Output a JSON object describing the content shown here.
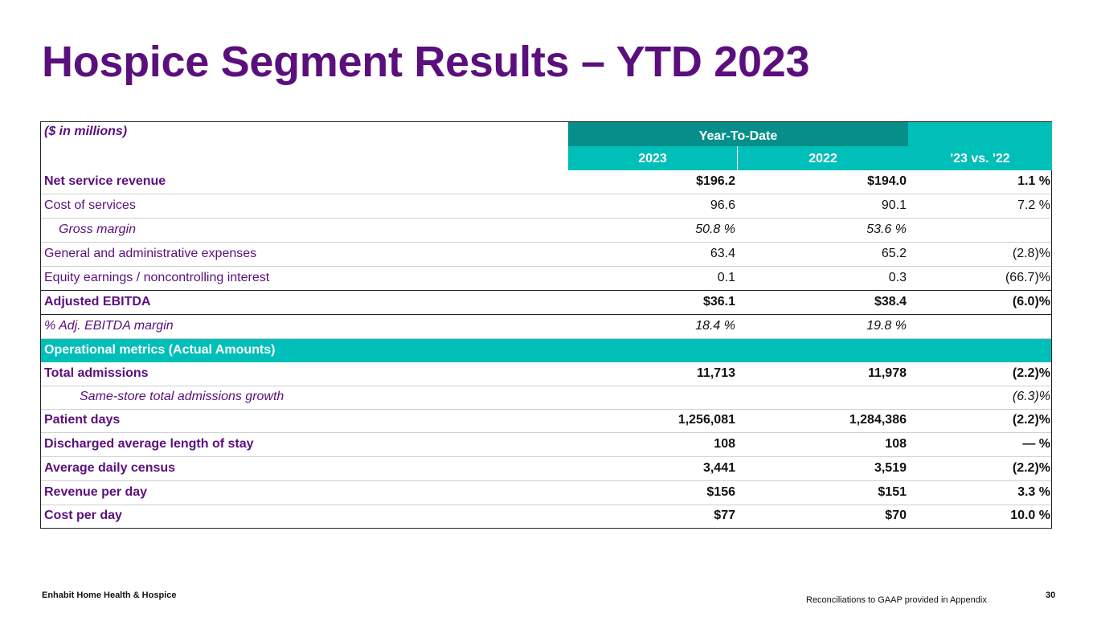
{
  "slide": {
    "title": "Hospice Segment Results – YTD 2023",
    "footer_company": "Enhabit Home Health & Hospice",
    "footer_note": "Reconciliations to GAAP provided in Appendix",
    "page_number": "30"
  },
  "colors": {
    "title": "#5b0f7d",
    "header_dark_teal": "#068f8a",
    "header_teal": "#00bfb8"
  },
  "table": {
    "units_label": "($ in millions)",
    "group_header": "Year-To-Date",
    "col_2023": "2023",
    "col_2022": "2022",
    "col_change": "'23 vs. '22",
    "rows": [
      {
        "label": "Net service revenue",
        "v2023": "$196.2",
        "v2022": "$194.0",
        "change": "1.1 %"
      },
      {
        "label": "Cost of services",
        "v2023": "96.6",
        "v2022": "90.1",
        "change": "7.2 %"
      },
      {
        "label": "Gross margin",
        "v2023": "50.8 %",
        "v2022": "53.6 %",
        "change": ""
      },
      {
        "label": "General and administrative expenses",
        "v2023": "63.4",
        "v2022": "65.2",
        "change": "(2.8)%"
      },
      {
        "label": "Equity earnings / noncontrolling interest",
        "v2023": "0.1",
        "v2022": "0.3",
        "change": "(66.7)%"
      },
      {
        "label": "Adjusted EBITDA",
        "v2023": "$36.1",
        "v2022": "$38.4",
        "change": "(6.0)%"
      },
      {
        "label": "%  Adj. EBITDA margin",
        "v2023": "18.4 %",
        "v2022": "19.8 %",
        "change": ""
      }
    ],
    "section_label": "Operational metrics (Actual Amounts)",
    "metrics": [
      {
        "label": "Total admissions",
        "v2023": "11,713",
        "v2022": "11,978",
        "change": "(2.2)%"
      },
      {
        "label": "Same-store total admissions growth",
        "v2023": "",
        "v2022": "",
        "change": "(6.3)%"
      },
      {
        "label": "Patient days",
        "v2023": "1,256,081",
        "v2022": "1,284,386",
        "change": "(2.2)%"
      },
      {
        "label": "Discharged average length of stay",
        "v2023": "108",
        "v2022": "108",
        "change": "— %"
      },
      {
        "label": "Average daily census",
        "v2023": "3,441",
        "v2022": "3,519",
        "change": "(2.2)%"
      },
      {
        "label": "Revenue per day",
        "v2023": "$156",
        "v2022": "$151",
        "change": "3.3 %"
      },
      {
        "label": "Cost per day",
        "v2023": "$77",
        "v2022": "$70",
        "change": "10.0 %"
      }
    ]
  }
}
